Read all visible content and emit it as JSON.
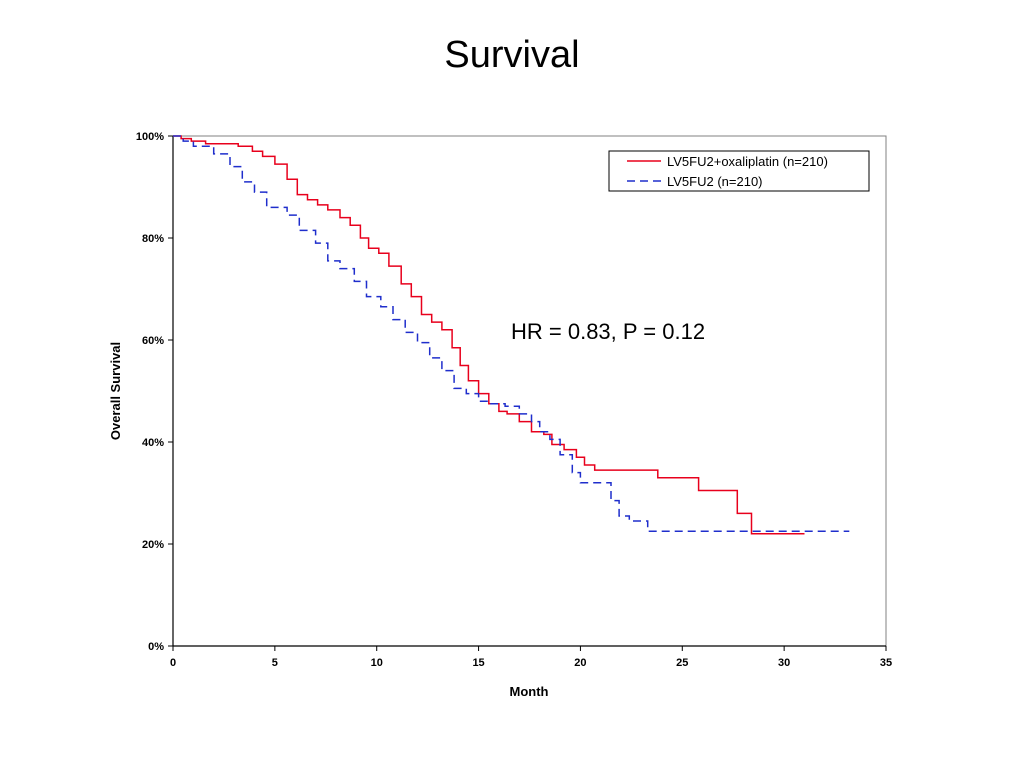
{
  "page": {
    "title": "Survival"
  },
  "chart_data": {
    "type": "line",
    "style": "step",
    "title": "Survival",
    "xlabel": "Month",
    "ylabel": "Overall Survival",
    "xlim": [
      0,
      35
    ],
    "ylim": [
      0,
      100
    ],
    "x_ticks": [
      0,
      5,
      10,
      15,
      20,
      25,
      30,
      35
    ],
    "y_ticks": [
      0,
      20,
      40,
      60,
      80,
      100
    ],
    "y_tick_labels": [
      "0%",
      "20%",
      "40%",
      "60%",
      "80%",
      "100%"
    ],
    "grid": false,
    "legend_position": "top-right",
    "annotation": "HR = 0.83, P = 0.12",
    "series": [
      {
        "name": "LV5FU2+oxaliplatin (n=210)",
        "color": "#e8001c",
        "dash": "solid",
        "x": [
          0,
          0.4,
          0.9,
          1.6,
          3.2,
          3.9,
          4.4,
          5.0,
          5.6,
          6.1,
          6.6,
          7.1,
          7.6,
          8.2,
          8.7,
          9.2,
          9.6,
          10.1,
          10.6,
          11.2,
          11.7,
          12.2,
          12.7,
          13.2,
          13.7,
          14.1,
          14.5,
          15.0,
          15.5,
          16.0,
          16.4,
          17.0,
          17.6,
          18.2,
          18.6,
          19.2,
          19.8,
          20.2,
          20.7,
          21.0,
          23.8,
          25.8,
          27.7,
          28.4,
          29.5,
          30.0,
          31.0
        ],
        "y": [
          100,
          99.5,
          99,
          98.5,
          98,
          97,
          96,
          94.5,
          91.5,
          88.5,
          87.5,
          86.5,
          85.5,
          84,
          82.5,
          80,
          78,
          77,
          74.5,
          71,
          68.5,
          65,
          63.5,
          62,
          58.5,
          55,
          52,
          49.5,
          47.5,
          46,
          45.5,
          44,
          42,
          41.5,
          39.5,
          38.5,
          37,
          35.5,
          34.5,
          34.5,
          33,
          30.5,
          26,
          22,
          22,
          22,
          22
        ]
      },
      {
        "name": "LV5FU2 (n=210)",
        "color": "#1f2ecc",
        "dash": "dashed",
        "x": [
          0,
          0.5,
          1.0,
          2.0,
          2.8,
          3.4,
          4.0,
          4.6,
          5.6,
          6.2,
          7.0,
          7.6,
          8.2,
          8.9,
          9.5,
          10.2,
          10.8,
          11.4,
          12.0,
          12.6,
          13.2,
          13.8,
          14.4,
          15.0,
          15.6,
          16.3,
          17.0,
          17.6,
          18.0,
          18.5,
          19.0,
          19.6,
          20.0,
          21.5,
          21.9,
          22.4,
          23.3,
          24.0,
          30.0,
          33.2
        ],
        "y": [
          100,
          99,
          98,
          96.5,
          94,
          91,
          89,
          86,
          84.5,
          81.5,
          79,
          75.5,
          74,
          71.5,
          68.5,
          66.5,
          64,
          61.5,
          59.5,
          56.5,
          54,
          50.5,
          49.5,
          48,
          47.5,
          47,
          45.5,
          44,
          42,
          40.5,
          37.5,
          34,
          32,
          28.5,
          25.5,
          24.5,
          22.5,
          22.5,
          22.5,
          22.5
        ]
      }
    ]
  }
}
